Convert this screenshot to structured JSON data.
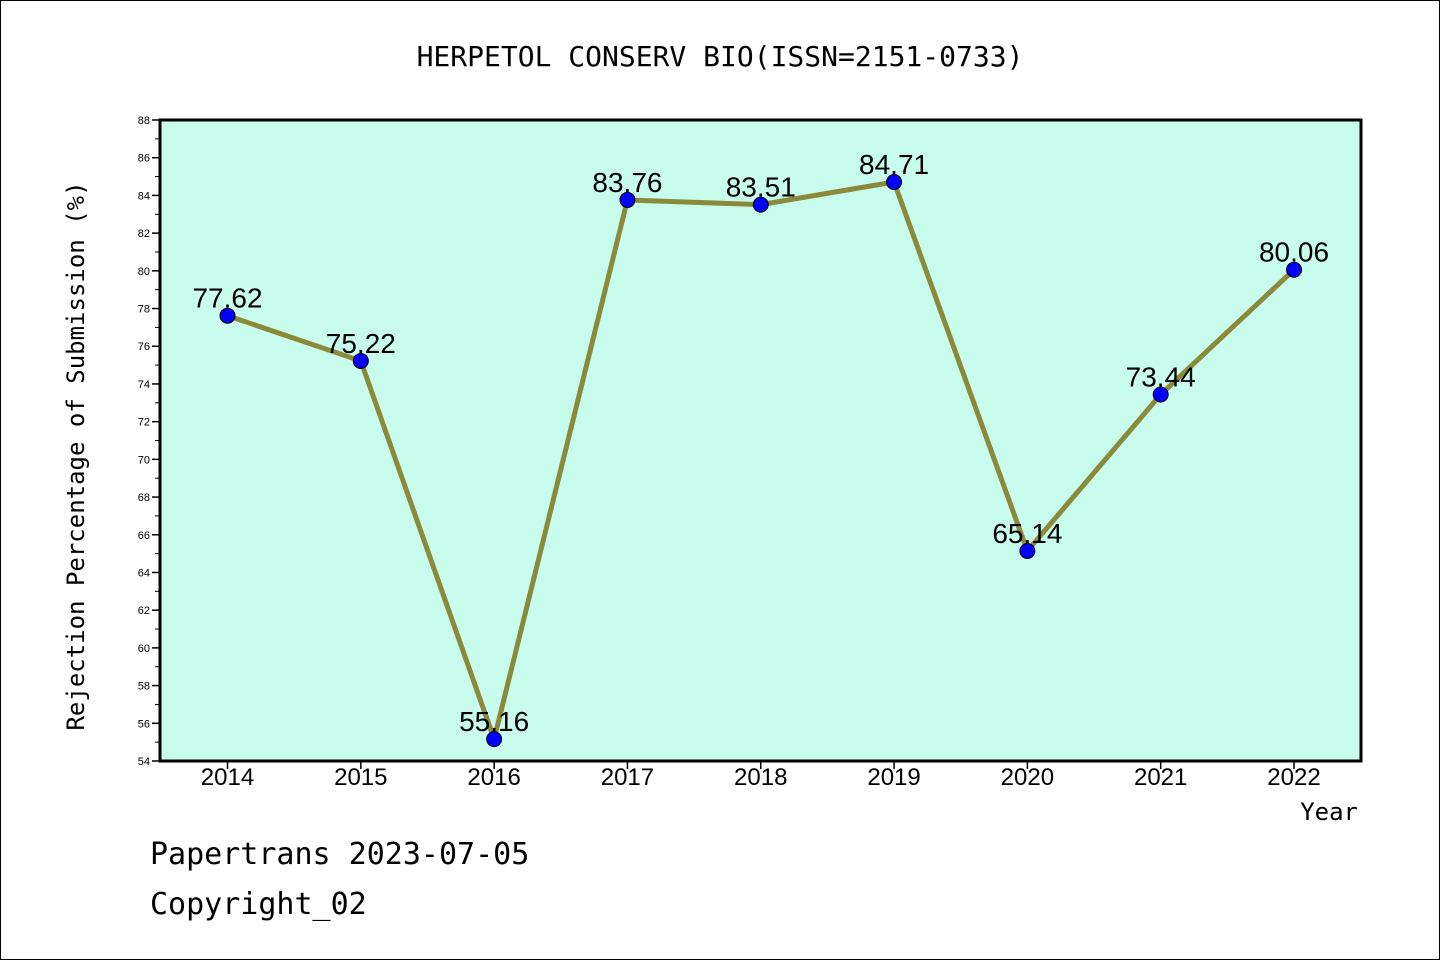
{
  "chart_data": {
    "type": "line",
    "title": "HERPETOL CONSERV BIO(ISSN=2151-0733)",
    "xlabel": "Year",
    "ylabel": "Rejection Percentage of Submission (%)",
    "x": [
      "2014",
      "2015",
      "2016",
      "2017",
      "2018",
      "2019",
      "2020",
      "2021",
      "2022"
    ],
    "values": [
      77.62,
      75.22,
      55.16,
      83.76,
      83.51,
      84.71,
      65.14,
      73.44,
      80.06
    ],
    "data_labels": [
      "77.62",
      "75.22",
      "55.16",
      "83.76",
      "83.51",
      "84.71",
      "65.14",
      "73.44",
      "80.06"
    ],
    "ylim": [
      54,
      88
    ],
    "y_ticks": [
      "54",
      "56",
      "58",
      "60",
      "62",
      "64",
      "66",
      "68",
      "70",
      "72",
      "74",
      "76",
      "78",
      "80",
      "82",
      "84",
      "86",
      "88"
    ],
    "grid": false,
    "colors": {
      "plot_background": "#c8fcec",
      "line": "#8b8a3a",
      "marker": "#0000ff"
    }
  },
  "footer": {
    "source": "Papertrans 2023-07-05",
    "copyright": "Copyright_02"
  }
}
